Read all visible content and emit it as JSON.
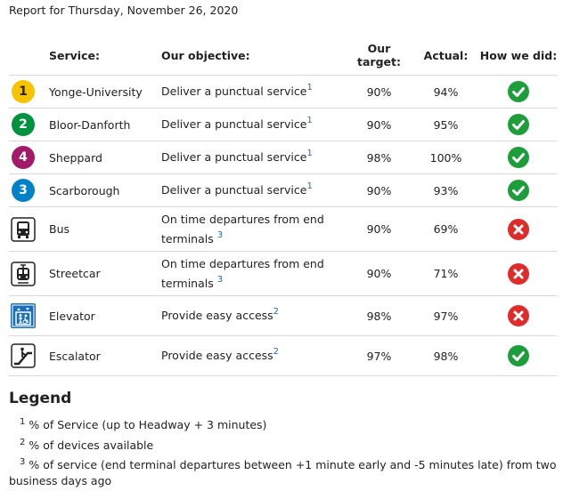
{
  "report_date": "Report for Thursday, November 26, 2020",
  "headers": {
    "service": "Service:",
    "objective": "Our objective:",
    "target_line1": "Our",
    "target_line2": "target:",
    "actual": "Actual:",
    "how": "How we did:"
  },
  "rows": [
    {
      "badge": "1",
      "service": "Yonge-University",
      "objective": "Deliver a punctual service",
      "note": "1",
      "target": "90%",
      "actual": "94%",
      "status": "met"
    },
    {
      "badge": "2",
      "service": "Bloor-Danforth",
      "objective": "Deliver a punctual service",
      "note": "1",
      "target": "90%",
      "actual": "95%",
      "status": "met"
    },
    {
      "badge": "4",
      "service": "Sheppard",
      "objective": "Deliver a punctual service",
      "note": "1",
      "target": "98%",
      "actual": "100%",
      "status": "met"
    },
    {
      "badge": "3",
      "service": "Scarborough",
      "objective": "Deliver a punctual service",
      "note": "1",
      "target": "90%",
      "actual": "93%",
      "status": "met"
    },
    {
      "icon": "bus-icon",
      "service": "Bus",
      "objective_line1": "On time departures from end",
      "objective_line2": "terminals",
      "note": "3",
      "target": "90%",
      "actual": "69%",
      "status": "not-met"
    },
    {
      "icon": "streetcar-icon",
      "service": "Streetcar",
      "objective_line1": "On time departures from end",
      "objective_line2": "terminals",
      "note": "3",
      "target": "90%",
      "actual": "71%",
      "status": "not-met"
    },
    {
      "icon": "elevator-icon",
      "service": "Elevator",
      "objective": "Provide easy access",
      "note": "2",
      "target": "98%",
      "actual": "97%",
      "status": "not-met"
    },
    {
      "icon": "escalator-icon",
      "service": "Escalator",
      "objective": "Provide easy access",
      "note": "2",
      "target": "97%",
      "actual": "98%",
      "status": "met"
    }
  ],
  "legend": {
    "title": "Legend",
    "items": [
      {
        "num": "1",
        "text": "% of Service (up to Headway + 3 minutes)"
      },
      {
        "num": "2",
        "text": "% of devices available"
      },
      {
        "num": "3",
        "text_line1": "% of service (end terminal departures between +1 minute early and -5 minutes late) from two",
        "text_line2": "business days ago"
      }
    ]
  },
  "colors": {
    "line1": "#f8c300",
    "line2": "#00923f",
    "line4": "#a21a68",
    "line3": "#0082c9",
    "met": "#1e9e3a",
    "not_met": "#e02b2b",
    "note": "#2a66b6"
  }
}
